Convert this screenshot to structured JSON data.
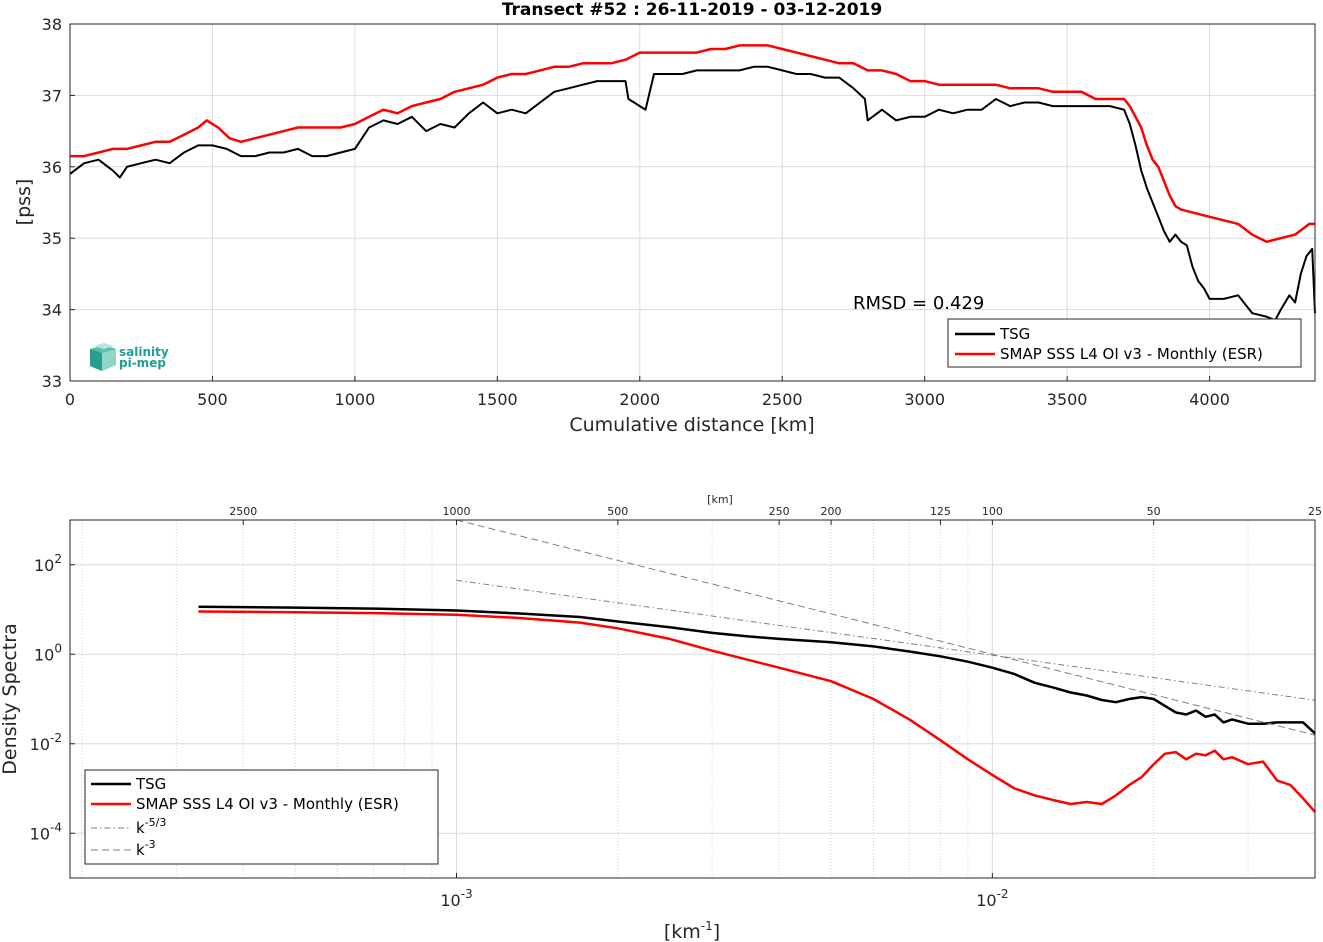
{
  "chart_data": [
    {
      "type": "line",
      "title": "Transect #52 : 26-11-2019 - 03-12-2019",
      "xlabel": "Cumulative distance [km]",
      "ylabel": "[pss]",
      "xlim": [
        0,
        4370
      ],
      "ylim": [
        33,
        38
      ],
      "xticks": [
        "0",
        "500",
        "1000",
        "1500",
        "2000",
        "2500",
        "3000",
        "3500",
        "4000"
      ],
      "yticks": [
        "33",
        "34",
        "35",
        "36",
        "37",
        "38"
      ],
      "grid": true,
      "legend_position": "bottom-right",
      "annotation": "RMSD = 0.429",
      "logo": {
        "line1": "salinity",
        "line2": "pi-mep",
        "color": "#1aa197"
      },
      "series": [
        {
          "name": "TSG",
          "color": "#000000",
          "x": [
            0,
            50,
            100,
            150,
            175,
            200,
            250,
            300,
            350,
            400,
            450,
            500,
            550,
            600,
            650,
            700,
            750,
            800,
            850,
            900,
            950,
            1000,
            1050,
            1100,
            1150,
            1200,
            1250,
            1300,
            1350,
            1400,
            1450,
            1500,
            1550,
            1600,
            1650,
            1700,
            1750,
            1800,
            1850,
            1900,
            1950,
            1960,
            2000,
            2020,
            2050,
            2100,
            2150,
            2200,
            2250,
            2300,
            2350,
            2400,
            2450,
            2500,
            2550,
            2600,
            2650,
            2700,
            2750,
            2790,
            2800,
            2850,
            2900,
            2950,
            3000,
            3050,
            3100,
            3150,
            3200,
            3250,
            3300,
            3350,
            3400,
            3450,
            3500,
            3550,
            3600,
            3650,
            3700,
            3720,
            3740,
            3760,
            3780,
            3800,
            3820,
            3840,
            3860,
            3880,
            3900,
            3920,
            3940,
            3960,
            3980,
            4000,
            4050,
            4100,
            4150,
            4200,
            4230,
            4250,
            4280,
            4300,
            4320,
            4340,
            4360,
            4370
          ],
          "y": [
            35.9,
            36.05,
            36.1,
            35.95,
            35.85,
            36.0,
            36.05,
            36.1,
            36.05,
            36.2,
            36.3,
            36.3,
            36.25,
            36.15,
            36.15,
            36.2,
            36.2,
            36.25,
            36.15,
            36.15,
            36.2,
            36.25,
            36.55,
            36.65,
            36.6,
            36.7,
            36.5,
            36.6,
            36.55,
            36.75,
            36.9,
            36.75,
            36.8,
            36.75,
            36.9,
            37.05,
            37.1,
            37.15,
            37.2,
            37.2,
            37.2,
            36.95,
            36.85,
            36.8,
            37.3,
            37.3,
            37.3,
            37.35,
            37.35,
            37.35,
            37.35,
            37.4,
            37.4,
            37.35,
            37.3,
            37.3,
            37.25,
            37.25,
            37.1,
            36.95,
            36.65,
            36.8,
            36.65,
            36.7,
            36.7,
            36.8,
            36.75,
            36.8,
            36.8,
            36.95,
            36.85,
            36.9,
            36.9,
            36.85,
            36.85,
            36.85,
            36.85,
            36.85,
            36.8,
            36.6,
            36.3,
            35.95,
            35.7,
            35.5,
            35.3,
            35.1,
            34.95,
            35.05,
            34.95,
            34.9,
            34.6,
            34.4,
            34.3,
            34.15,
            34.15,
            34.2,
            33.95,
            33.9,
            33.85,
            34.0,
            34.2,
            34.1,
            34.5,
            34.75,
            34.85,
            33.95
          ]
        },
        {
          "name": "SMAP SSS L4 OI v3 - Monthly (ESR)",
          "color": "#ff0000",
          "x": [
            0,
            50,
            100,
            150,
            200,
            250,
            300,
            350,
            400,
            450,
            480,
            520,
            560,
            600,
            650,
            700,
            750,
            800,
            850,
            900,
            950,
            1000,
            1050,
            1100,
            1150,
            1200,
            1250,
            1300,
            1350,
            1400,
            1450,
            1500,
            1550,
            1600,
            1650,
            1700,
            1750,
            1800,
            1850,
            1900,
            1950,
            2000,
            2050,
            2100,
            2150,
            2200,
            2250,
            2300,
            2350,
            2400,
            2450,
            2500,
            2550,
            2600,
            2650,
            2700,
            2750,
            2800,
            2850,
            2900,
            2950,
            3000,
            3050,
            3100,
            3150,
            3200,
            3250,
            3300,
            3350,
            3400,
            3450,
            3500,
            3550,
            3600,
            3650,
            3700,
            3720,
            3740,
            3760,
            3780,
            3800,
            3820,
            3840,
            3860,
            3880,
            3900,
            3950,
            4000,
            4050,
            4100,
            4150,
            4200,
            4250,
            4300,
            4350,
            4370
          ],
          "y": [
            36.15,
            36.15,
            36.2,
            36.25,
            36.25,
            36.3,
            36.35,
            36.35,
            36.45,
            36.55,
            36.65,
            36.55,
            36.4,
            36.35,
            36.4,
            36.45,
            36.5,
            36.55,
            36.55,
            36.55,
            36.55,
            36.6,
            36.7,
            36.8,
            36.75,
            36.85,
            36.9,
            36.95,
            37.05,
            37.1,
            37.15,
            37.25,
            37.3,
            37.3,
            37.35,
            37.4,
            37.4,
            37.45,
            37.45,
            37.45,
            37.5,
            37.6,
            37.6,
            37.6,
            37.6,
            37.6,
            37.65,
            37.65,
            37.7,
            37.7,
            37.7,
            37.65,
            37.6,
            37.55,
            37.5,
            37.45,
            37.45,
            37.35,
            37.35,
            37.3,
            37.2,
            37.2,
            37.15,
            37.15,
            37.15,
            37.15,
            37.15,
            37.1,
            37.1,
            37.1,
            37.05,
            37.05,
            37.05,
            36.95,
            36.95,
            36.95,
            36.85,
            36.7,
            36.55,
            36.3,
            36.1,
            36.0,
            35.8,
            35.6,
            35.45,
            35.4,
            35.35,
            35.3,
            35.25,
            35.2,
            35.05,
            34.95,
            35.0,
            35.05,
            35.2,
            35.2
          ]
        }
      ]
    },
    {
      "type": "line",
      "xlabel": "[km-1]",
      "xlabel_base": "[km",
      "xlabel_exp": "-1",
      "xlabel_end": "]",
      "ylabel": "Density Spectra",
      "xscale": "log",
      "yscale": "log",
      "xlim": [
        0.00019,
        0.04
      ],
      "ylim": [
        1e-05,
        1000
      ],
      "xticks": [
        {
          "base": "10",
          "exp": "-3"
        },
        {
          "base": "10",
          "exp": "-2"
        }
      ],
      "yticks": [
        {
          "base": "10",
          "exp": "-4"
        },
        {
          "base": "10",
          "exp": "-2"
        },
        {
          "base": "10",
          "exp": "0"
        },
        {
          "base": "10",
          "exp": "2"
        }
      ],
      "top_axis_label": "[km]",
      "top_ticks": [
        "2500",
        "1000",
        "500",
        "250",
        "200",
        "125",
        "100",
        "50",
        "25"
      ],
      "top_tick_values_km": [
        2500,
        1000,
        500,
        250,
        200,
        125,
        100,
        50,
        25
      ],
      "grid": true,
      "legend_position": "bottom-left",
      "series": [
        {
          "name": "TSG",
          "color": "#000000",
          "x": [
            0.00033,
            0.0005,
            0.0007,
            0.001,
            0.0013,
            0.0017,
            0.002,
            0.0025,
            0.003,
            0.0035,
            0.004,
            0.005,
            0.006,
            0.007,
            0.008,
            0.009,
            0.01,
            0.011,
            0.012,
            0.013,
            0.014,
            0.015,
            0.016,
            0.017,
            0.018,
            0.019,
            0.02,
            0.021,
            0.022,
            0.023,
            0.024,
            0.025,
            0.026,
            0.027,
            0.028,
            0.03,
            0.032,
            0.034,
            0.036,
            0.038,
            0.04
          ],
          "y": [
            11.5,
            11.0,
            10.5,
            9.5,
            8.2,
            6.8,
            5.4,
            4.0,
            3.0,
            2.5,
            2.2,
            1.85,
            1.5,
            1.15,
            0.9,
            0.68,
            0.5,
            0.36,
            0.23,
            0.18,
            0.14,
            0.12,
            0.095,
            0.085,
            0.1,
            0.11,
            0.1,
            0.07,
            0.05,
            0.045,
            0.055,
            0.04,
            0.045,
            0.03,
            0.035,
            0.028,
            0.028,
            0.03,
            0.03,
            0.03,
            0.017
          ]
        },
        {
          "name": "SMAP SSS L4 OI v3 - Monthly (ESR)",
          "color": "#ff0000",
          "x": [
            0.00033,
            0.0005,
            0.0007,
            0.001,
            0.0013,
            0.0017,
            0.002,
            0.0025,
            0.003,
            0.0035,
            0.004,
            0.005,
            0.006,
            0.007,
            0.008,
            0.009,
            0.01,
            0.011,
            0.012,
            0.013,
            0.014,
            0.015,
            0.016,
            0.017,
            0.018,
            0.019,
            0.02,
            0.021,
            0.022,
            0.023,
            0.024,
            0.025,
            0.026,
            0.027,
            0.028,
            0.03,
            0.032,
            0.034,
            0.036,
            0.038,
            0.04
          ],
          "y": [
            9.0,
            8.7,
            8.3,
            7.6,
            6.5,
            5.1,
            3.8,
            2.2,
            1.2,
            0.75,
            0.5,
            0.25,
            0.1,
            0.035,
            0.012,
            0.0045,
            0.002,
            0.001,
            0.0007,
            0.00055,
            0.00045,
            0.0005,
            0.00045,
            0.0007,
            0.0012,
            0.0018,
            0.0035,
            0.006,
            0.0065,
            0.0045,
            0.006,
            0.0055,
            0.007,
            0.0045,
            0.005,
            0.0035,
            0.004,
            0.0015,
            0.0012,
            0.0006,
            0.0003
          ]
        },
        {
          "name": "k-5/3",
          "name_base": "k",
          "name_exp": "-5/3",
          "color": "#808080",
          "style": "dash-dot",
          "x": [
            0.001,
            0.04
          ],
          "y": [
            45,
            0.094
          ]
        },
        {
          "name": "k-3",
          "name_base": "k",
          "name_exp": "-3",
          "color": "#808080",
          "style": "dashed",
          "x": [
            0.001,
            0.04
          ],
          "y": [
            1000,
            0.0156
          ]
        }
      ]
    }
  ]
}
